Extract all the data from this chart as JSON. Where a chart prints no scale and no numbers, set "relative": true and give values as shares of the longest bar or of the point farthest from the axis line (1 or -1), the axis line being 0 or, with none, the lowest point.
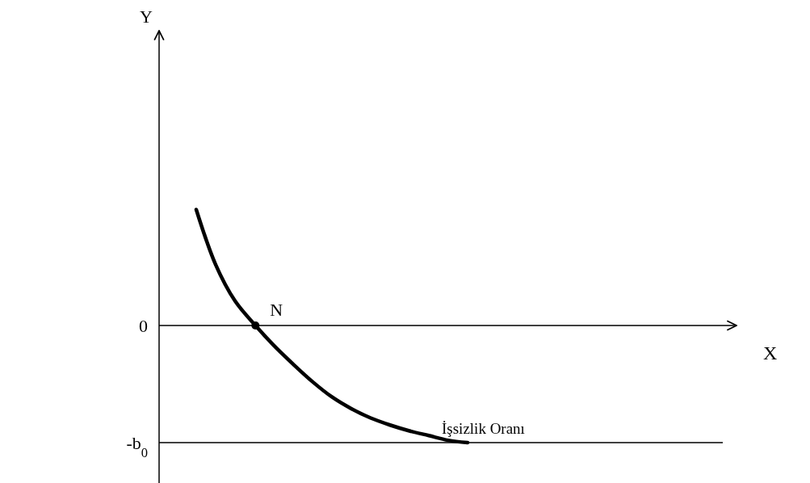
{
  "chart_data": {
    "type": "line",
    "relative": true,
    "categories": [
      null,
      null,
      null,
      null,
      null,
      null,
      null,
      null,
      null,
      null,
      null,
      null,
      null,
      null,
      null
    ],
    "series": [
      {
        "color": "#000000",
        "values": [
          0.99,
          0.52,
          0.21,
          0.01,
          -0.17,
          -0.33,
          -0.48,
          -0.61,
          -0.71,
          -0.79,
          -0.85,
          -0.9,
          -0.94,
          -0.98,
          -1
        ]
      }
    ],
    "ref_lines": [
      {
        "axis": "y",
        "value": 0,
        "label": "0"
      },
      {
        "axis": "y",
        "value": -1,
        "label": "-b$_{0}$"
      }
    ],
    "annotations": [
      {
        "text": "N",
        "y": 0
      },
      {
        "text": "İşsizlik Oranı",
        "y": -1
      },
      "X",
      "Y"
    ],
    "marker": "none",
    "grid": false,
    "legend": false
  }
}
